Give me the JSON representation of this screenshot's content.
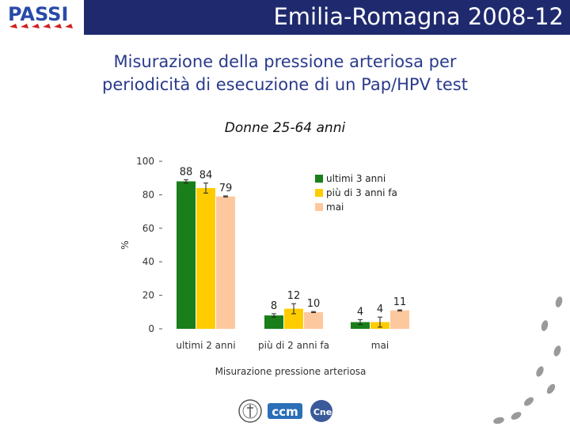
{
  "header": {
    "title": "Emilia-Romagna 2008-12",
    "logo_text": "PASSI",
    "bar_color": "#1f2a6e"
  },
  "main_title": {
    "line1": "Misurazione della pressione arteriosa per",
    "line2": "periodicità di esecuzione di un Pap/HPV test"
  },
  "subtitle": "Donne 25-64 anni",
  "chart_data": {
    "type": "bar",
    "categories": [
      "ultimi 2 anni",
      "più di 2 anni fa",
      "mai"
    ],
    "series": [
      {
        "name": "ultimi 3 anni",
        "color": "#1a7f1a",
        "values": [
          88,
          8,
          4
        ],
        "errors": [
          1,
          1,
          1.5
        ]
      },
      {
        "name": "più di 3 anni fa",
        "color": "#ffcc00",
        "values": [
          84,
          12,
          4
        ],
        "errors": [
          3,
          3,
          3
        ]
      },
      {
        "name": "mai",
        "color": "#fdc89e",
        "values": [
          79,
          10,
          11
        ],
        "errors": [
          0.3,
          0.3,
          0.3
        ]
      }
    ],
    "data_labels": [
      [
        "88",
        "8",
        "4"
      ],
      [
        "84",
        "12",
        "4"
      ],
      [
        "79",
        "10",
        "11"
      ]
    ],
    "xlabel": "Misurazione pressione arteriosa",
    "ylabel": "%",
    "yticks": [
      0,
      20,
      40,
      60,
      80,
      100
    ],
    "ylim": [
      0,
      100
    ],
    "grid": false,
    "legend_position": "top-right"
  },
  "footer": {
    "logo_ccm": "ccm",
    "logo_cnesps": "Cnesps"
  }
}
